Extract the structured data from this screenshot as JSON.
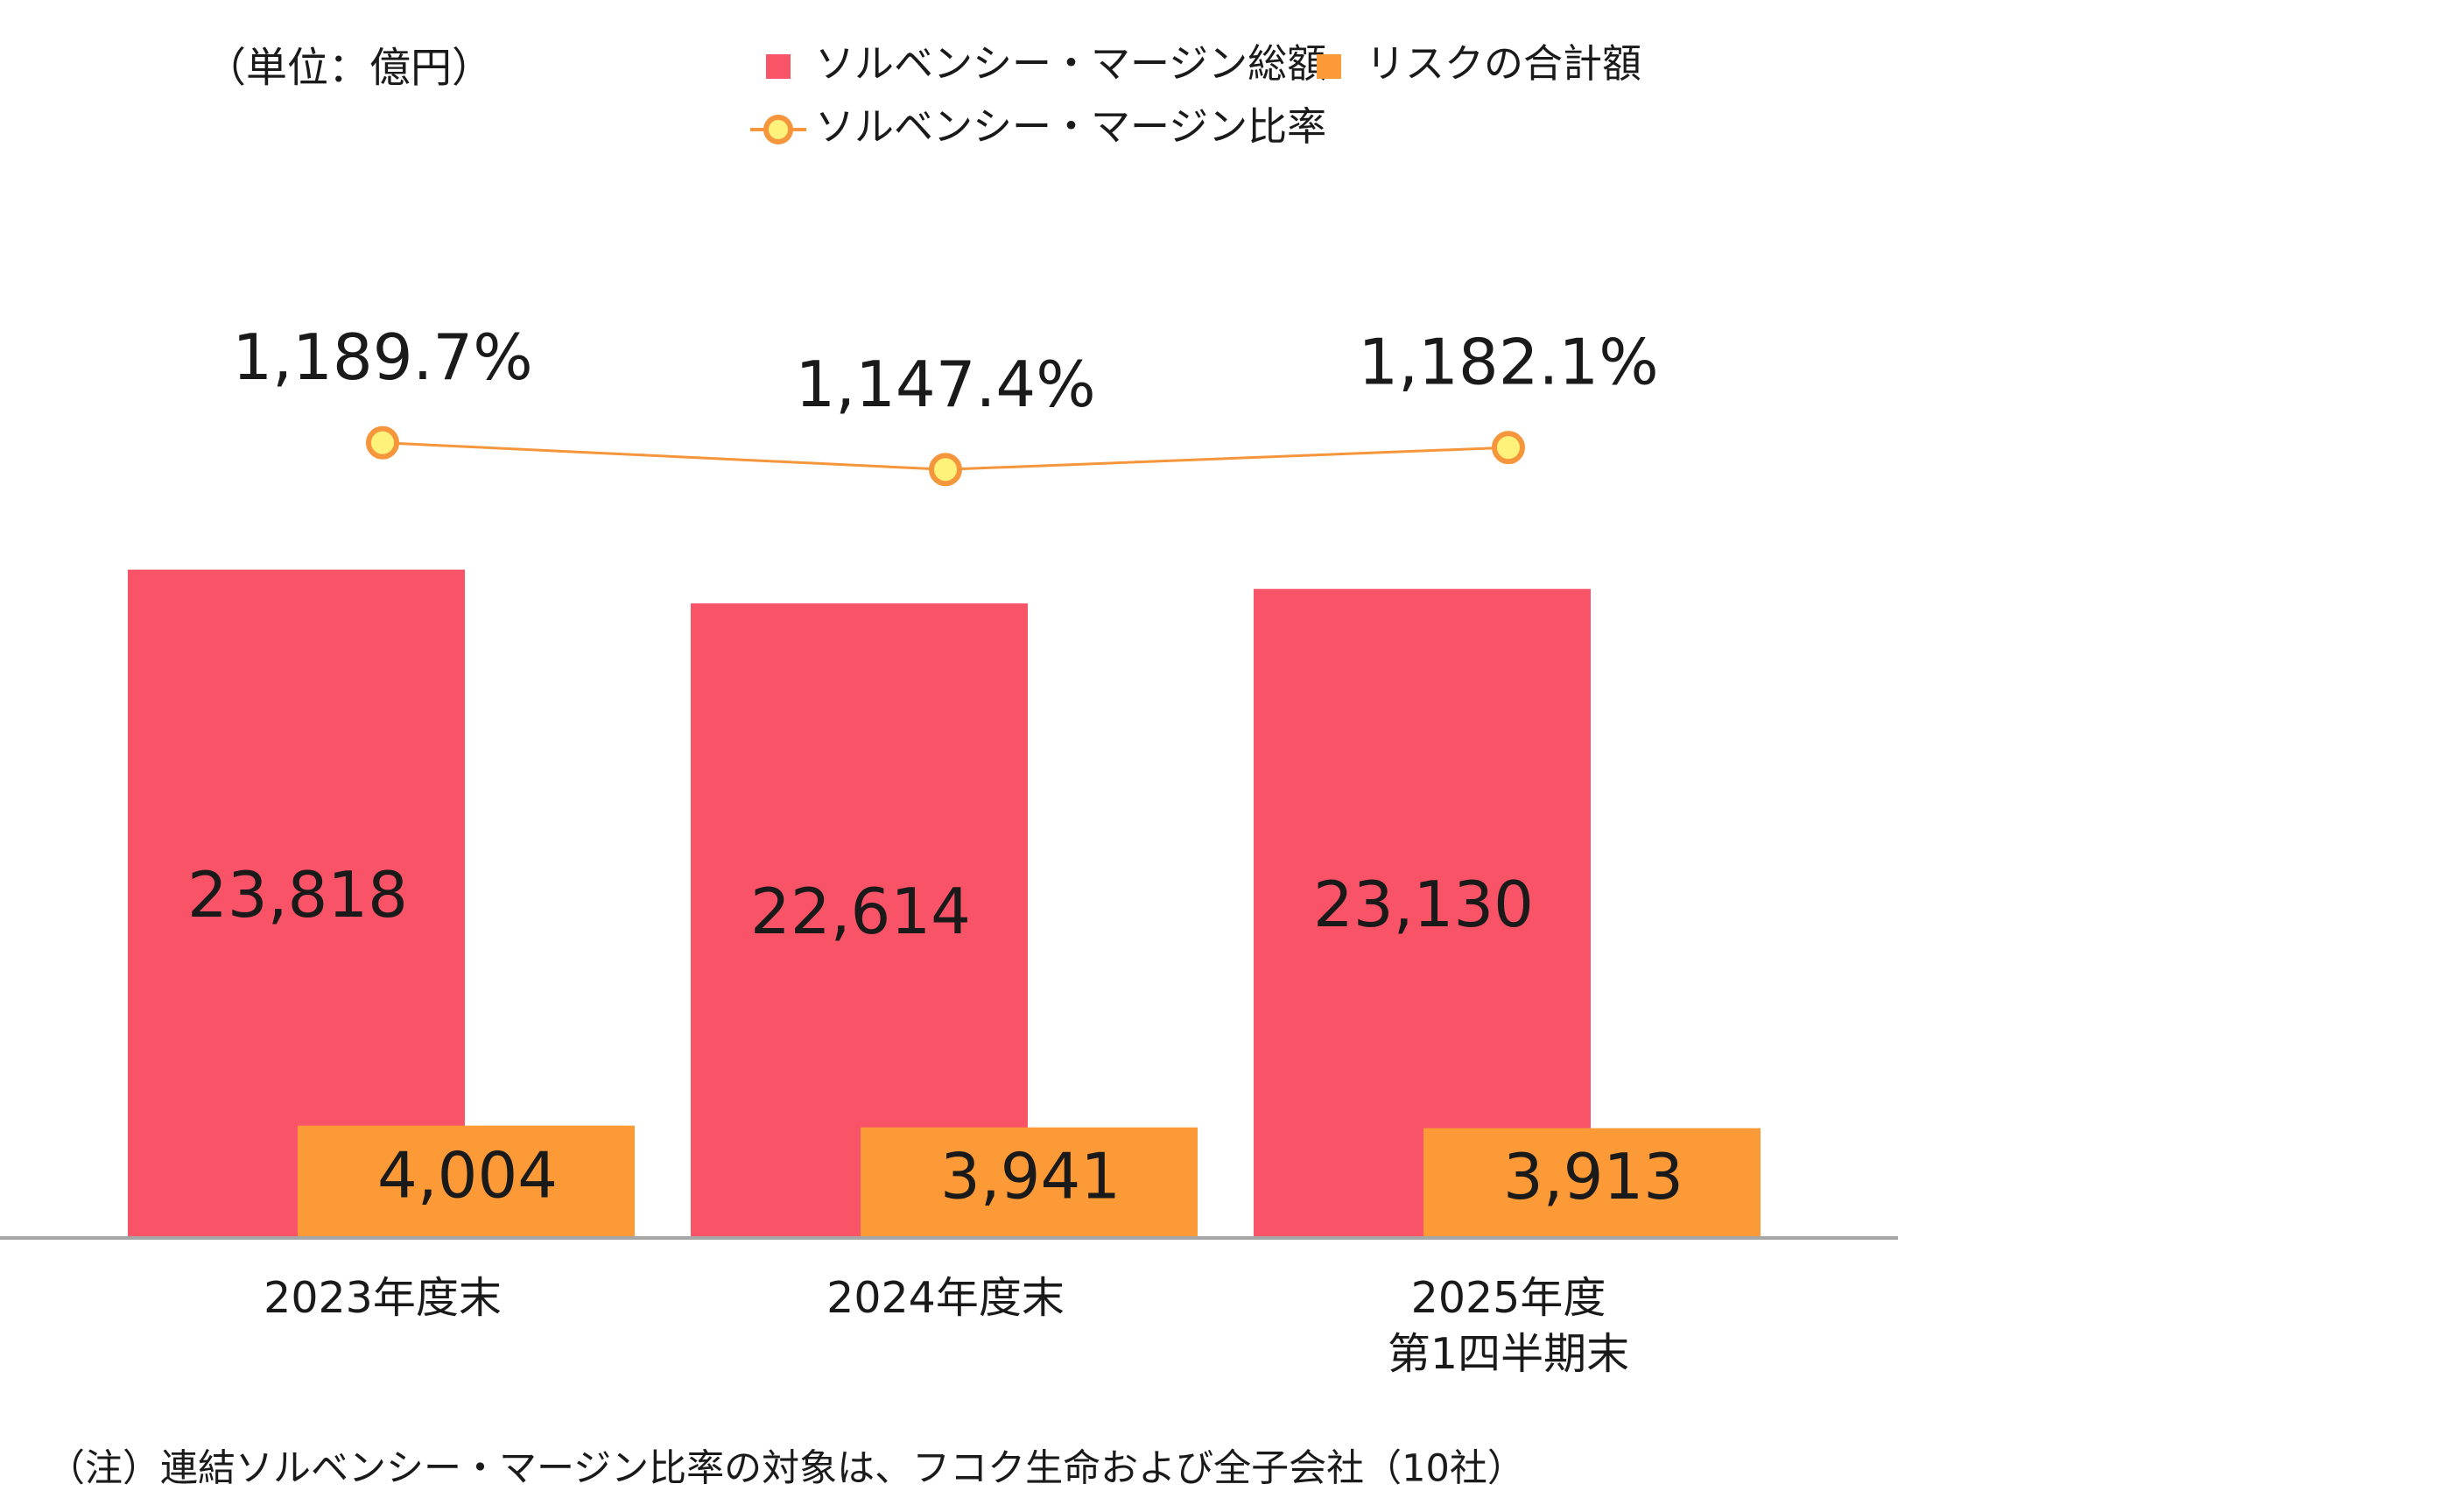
{
  "chart_data": {
    "type": "bar",
    "unit": "（単位：億円）",
    "categories": [
      "2023年度末",
      "2024年度末",
      "2025年度\n第1四半期末"
    ],
    "series": [
      {
        "name": "ソルベンシー・マージン総額",
        "color": "#f95367",
        "values": [
          23818,
          22614,
          23130
        ],
        "value_labels": [
          "23,818",
          "22,614",
          "23,130"
        ]
      },
      {
        "name": "リスクの合計額",
        "color": "#fb9a37",
        "values": [
          4004,
          3941,
          3913
        ],
        "value_labels": [
          "4,004",
          "3,941",
          "3,913"
        ]
      },
      {
        "name": "ソルベンシー・マージン比率",
        "type": "line",
        "color": "#f5963c",
        "values": [
          1189.7,
          1147.4,
          1182.1
        ],
        "value_labels": [
          "1,189.7%",
          "1,147.4%",
          "1,182.1%"
        ]
      }
    ],
    "note": "（注）連結ソルベンシー・マージン比率の対象は、フコク生命および全子会社（10社）"
  }
}
